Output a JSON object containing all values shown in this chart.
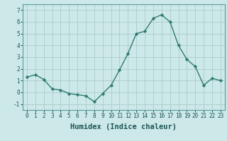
{
  "x": [
    0,
    1,
    2,
    3,
    4,
    5,
    6,
    7,
    8,
    9,
    10,
    11,
    12,
    13,
    14,
    15,
    16,
    17,
    18,
    19,
    20,
    21,
    22,
    23
  ],
  "y": [
    1.3,
    1.5,
    1.1,
    0.3,
    0.2,
    -0.1,
    -0.2,
    -0.3,
    -0.8,
    -0.1,
    0.6,
    1.9,
    3.3,
    5.0,
    5.2,
    6.3,
    6.6,
    6.0,
    4.0,
    2.8,
    2.2,
    0.6,
    1.2,
    1.0
  ],
  "line_color": "#2e7d6e",
  "marker": "D",
  "marker_size": 2.2,
  "bg_color": "#cde8e8",
  "grid_color": "#aacccc",
  "xlabel": "Humidex (Indice chaleur)",
  "ylim": [
    -1.5,
    7.5
  ],
  "xlim": [
    -0.5,
    23.5
  ],
  "yticks": [
    -1,
    0,
    1,
    2,
    3,
    4,
    5,
    6,
    7
  ],
  "xticks": [
    0,
    1,
    2,
    3,
    4,
    5,
    6,
    7,
    8,
    9,
    10,
    11,
    12,
    13,
    14,
    15,
    16,
    17,
    18,
    19,
    20,
    21,
    22,
    23
  ],
  "tick_fontsize": 5.5,
  "xlabel_fontsize": 7.5,
  "line_width": 1.0,
  "spine_color": "#5a9a9a"
}
